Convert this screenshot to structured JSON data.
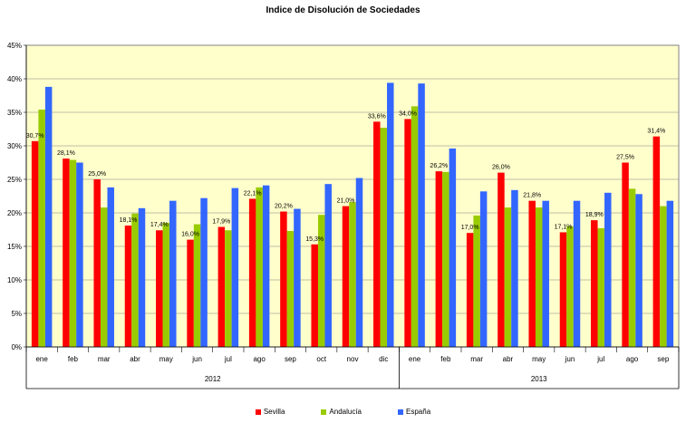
{
  "chart_data": {
    "type": "bar",
    "title": "Indice de Disolución de Sociedades",
    "y_axis": {
      "min": 0,
      "max": 45,
      "step": 5,
      "unit": "%"
    },
    "grid": true,
    "legend_position": "bottom",
    "categories": [
      "ene",
      "feb",
      "mar",
      "abr",
      "may",
      "jun",
      "jul",
      "ago",
      "sep",
      "oct",
      "nov",
      "dic",
      "ene",
      "feb",
      "mar",
      "abr",
      "may",
      "jun",
      "jul",
      "ago",
      "sep"
    ],
    "year_groups": [
      {
        "label": "2012",
        "count": 12
      },
      {
        "label": "2013",
        "count": 9
      }
    ],
    "series": [
      {
        "name": "Sevilla",
        "color": "#ff0000",
        "values": [
          30.7,
          28.1,
          25.0,
          18.1,
          17.4,
          16.0,
          17.9,
          22.1,
          20.2,
          15.3,
          21.0,
          33.6,
          34.0,
          26.2,
          17.0,
          26.0,
          21.8,
          17.1,
          18.9,
          27.5,
          31.4
        ],
        "labels": [
          "30,7%",
          "28,1%",
          "25,0%",
          "18,1%",
          "17,4%",
          "16,0%",
          "17,9%",
          "22,1%",
          "20,2%",
          "15,3%",
          "21,0%",
          "33,6%",
          "34,0%",
          "26,2%",
          "17,0%",
          "26,0%",
          "21,8%",
          "17,1%",
          "18,9%",
          "27,5%",
          "31,4%"
        ]
      },
      {
        "name": "Andalucía",
        "color": "#99cc00",
        "values": [
          35.4,
          27.9,
          20.8,
          19.9,
          18.5,
          18.3,
          17.4,
          23.8,
          17.3,
          19.7,
          21.6,
          32.7,
          35.9,
          26.1,
          19.6,
          20.8,
          20.8,
          18.0,
          17.7,
          23.6,
          21.0
        ]
      },
      {
        "name": "España",
        "color": "#3366ff",
        "values": [
          38.8,
          27.5,
          23.8,
          20.7,
          21.8,
          22.2,
          23.7,
          24.1,
          20.6,
          24.3,
          25.2,
          39.4,
          39.3,
          29.6,
          23.2,
          23.4,
          21.8,
          21.8,
          23.0,
          22.8,
          21.8
        ]
      }
    ]
  }
}
